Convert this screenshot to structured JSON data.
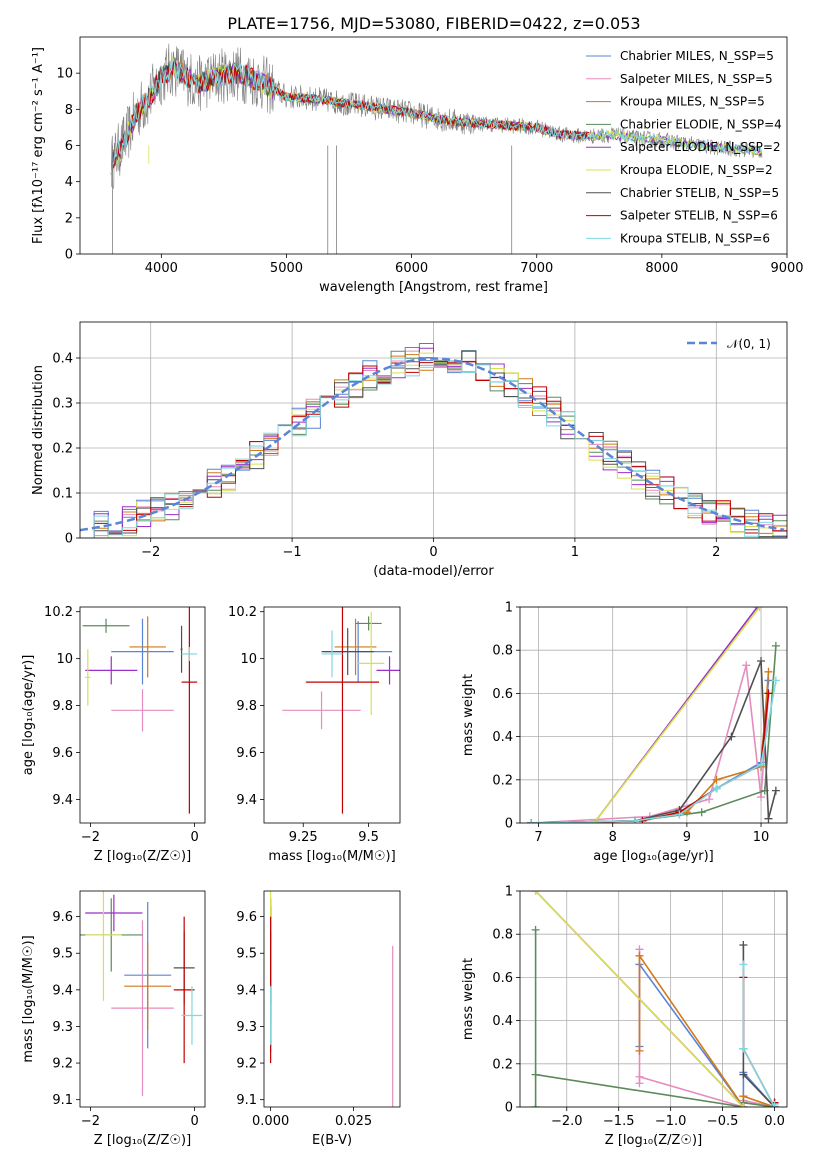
{
  "figure_title": "PLATE=1756, MJD=53080, FIBERID=0422, z=0.053",
  "model_colors": [
    "#5a84d6",
    "#e58cbe",
    "#d07a1b",
    "#5b8a5b",
    "#9b30c8",
    "#d8e050",
    "#505050",
    "#c00000",
    "#80d8e0"
  ],
  "chart_data": [
    {
      "type": "line",
      "panel": "spectrum",
      "xlabel": "wavelength [Angstrom, rest frame]",
      "ylabel": "Flux [fλ10⁻¹⁷ erg cm⁻² s⁻¹ A⁻¹]",
      "xlim": [
        3350,
        9000
      ],
      "ylim": [
        0,
        12
      ],
      "xticks": [
        4000,
        5000,
        6000,
        7000,
        8000,
        9000
      ],
      "yticks": [
        0,
        2,
        4,
        6,
        8,
        10
      ],
      "grid": false,
      "legend_position": "top-right",
      "legend": [
        "Chabrier MILES, N_SSP=5",
        "Salpeter MILES, N_SSP=5",
        "Kroupa MILES, N_SSP=5",
        "Chabrier ELODIE, N_SSP=4",
        "Salpeter ELODIE, N_SSP=2",
        "Kroupa ELODIE, N_SSP=2",
        "Chabrier STELIB, N_SSP=5",
        "Salpeter STELIB, N_SSP=6",
        "Kroupa STELIB, N_SSP=6"
      ],
      "data_envelope": {
        "wavelength": [
          3600,
          3650,
          3700,
          3750,
          3800,
          3850,
          3900,
          3950,
          4000,
          4100,
          4200,
          4300,
          4400,
          4500,
          4600,
          4700,
          4800,
          4900,
          5000,
          5200,
          5400,
          5600,
          5800,
          6000,
          6200,
          6400,
          6600,
          6800,
          7000,
          7200,
          7400,
          7600,
          7800,
          8000,
          8200,
          8400,
          8600,
          8800
        ],
        "flux": [
          5.0,
          5.6,
          6.2,
          6.9,
          7.8,
          8.2,
          8.6,
          9.2,
          9.8,
          10.3,
          9.8,
          9.4,
          9.7,
          9.9,
          10.0,
          9.8,
          9.5,
          9.1,
          8.7,
          8.6,
          8.4,
          8.2,
          8.0,
          7.8,
          7.5,
          7.3,
          7.2,
          7.1,
          7.0,
          6.6,
          6.5,
          6.6,
          6.4,
          6.3,
          6.1,
          5.9,
          5.8,
          5.7
        ]
      }
    },
    {
      "type": "line",
      "panel": "residuals",
      "xlabel": "(data-model)/error",
      "ylabel": "Normed distribution",
      "xlim": [
        -2.5,
        2.5
      ],
      "ylim": [
        0,
        0.48
      ],
      "xticks": [
        -2,
        -1,
        0,
        1,
        2
      ],
      "yticks": [
        0.0,
        0.1,
        0.2,
        0.3,
        0.4
      ],
      "grid": true,
      "legend_position": "top-right",
      "legend": [
        "𝒩(0, 1)"
      ],
      "hist_bin_width": 0.1
    },
    {
      "type": "scatter",
      "panel": "age-vs-metallicity",
      "xlabel": "Z [log₁₀(Z/Z☉)]",
      "ylabel": "age  [log₁₀(age/yr)]",
      "xlim": [
        -2.2,
        0.2
      ],
      "ylim": [
        9.3,
        10.22
      ],
      "xticks": [
        -2,
        0
      ],
      "yticks": [
        9.4,
        9.6,
        9.8,
        10.0,
        10.2
      ],
      "grid": false,
      "points": [
        {
          "x": -1.0,
          "y": 10.03,
          "xerr": 0.6,
          "yerr": 0.14,
          "color": 0
        },
        {
          "x": -1.0,
          "y": 9.78,
          "xerr": 0.6,
          "yerr": 0.09,
          "color": 1
        },
        {
          "x": -0.9,
          "y": 10.05,
          "xerr": 0.35,
          "yerr": 0.13,
          "color": 2
        },
        {
          "x": -1.7,
          "y": 10.14,
          "xerr": 0.45,
          "yerr": 0.03,
          "color": 3
        },
        {
          "x": -1.6,
          "y": 9.95,
          "xerr": 0.5,
          "yerr": 0.06,
          "color": 4
        },
        {
          "x": -2.05,
          "y": 9.92,
          "xerr": 0.05,
          "yerr": 0.12,
          "color": 5
        },
        {
          "x": -0.25,
          "y": 10.04,
          "xerr": 0.02,
          "yerr": 0.1,
          "color": 6
        },
        {
          "x": -0.1,
          "y": 9.9,
          "xerr": 0.15,
          "yerr": 0.56,
          "color": 7
        },
        {
          "x": -0.1,
          "y": 10.02,
          "xerr": 0.15,
          "yerr": 0.03,
          "color": 8
        }
      ]
    },
    {
      "type": "scatter",
      "panel": "age-vs-mass",
      "xlabel": "mass [log₁₀(M/M☉)]",
      "ylabel": "",
      "xlim": [
        9.1,
        9.62
      ],
      "ylim": [
        9.3,
        10.22
      ],
      "xticks": [
        9.25,
        9.5
      ],
      "yticks": [
        9.4,
        9.6,
        9.8,
        10.0,
        10.2
      ],
      "grid": false,
      "points": [
        {
          "x": 9.46,
          "y": 10.03,
          "xerr": 0.13,
          "yerr": 0.13,
          "color": 0
        },
        {
          "x": 9.32,
          "y": 9.78,
          "xerr": 0.15,
          "yerr": 0.08,
          "color": 1
        },
        {
          "x": 9.45,
          "y": 10.05,
          "xerr": 0.08,
          "yerr": 0.12,
          "color": 2
        },
        {
          "x": 9.5,
          "y": 10.15,
          "xerr": 0.05,
          "yerr": 0.03,
          "color": 3
        },
        {
          "x": 9.58,
          "y": 9.95,
          "xerr": 0.05,
          "yerr": 0.06,
          "color": 4
        },
        {
          "x": 9.51,
          "y": 9.98,
          "xerr": 0.05,
          "yerr": 0.22,
          "color": 5
        },
        {
          "x": 9.42,
          "y": 10.03,
          "xerr": 0.1,
          "yerr": 0.1,
          "color": 6
        },
        {
          "x": 9.4,
          "y": 9.9,
          "xerr": 0.14,
          "yerr": 0.56,
          "color": 7
        },
        {
          "x": 9.36,
          "y": 10.02,
          "xerr": 0.04,
          "yerr": 0.1,
          "color": 8
        }
      ]
    },
    {
      "type": "line",
      "panel": "mass-weight-vs-age",
      "xlabel": "age  [log₁₀(age/yr)]",
      "ylabel": "mass weight",
      "xlim": [
        6.75,
        10.35
      ],
      "ylim": [
        0,
        1
      ],
      "xticks": [
        7,
        8,
        9,
        10
      ],
      "yticks": [
        0.0,
        0.2,
        0.4,
        0.6,
        0.8,
        1.0
      ],
      "grid": true,
      "series": [
        {
          "color": 0,
          "x": [
            6.9,
            8.3,
            8.9,
            9.4,
            10.0,
            10.1
          ],
          "y": [
            0.0,
            0.01,
            0.04,
            0.16,
            0.28,
            0.66
          ]
        },
        {
          "color": 1,
          "x": [
            6.9,
            8.5,
            9.3,
            9.8,
            10.0,
            10.1
          ],
          "y": [
            0.0,
            0.03,
            0.11,
            0.73,
            0.12,
            0.6
          ]
        },
        {
          "color": 2,
          "x": [
            6.9,
            8.3,
            9.0,
            9.4,
            10.0,
            10.1
          ],
          "y": [
            0.0,
            0.01,
            0.05,
            0.2,
            0.26,
            0.7
          ]
        },
        {
          "color": 3,
          "x": [
            6.9,
            8.3,
            9.2,
            10.05,
            10.2
          ],
          "y": [
            0.0,
            0.01,
            0.05,
            0.15,
            0.82
          ]
        },
        {
          "color": 4,
          "x": [
            7.75,
            9.95
          ],
          "y": [
            0.0,
            1.0
          ]
        },
        {
          "color": 5,
          "x": [
            7.75,
            9.98
          ],
          "y": [
            0.0,
            1.0
          ]
        },
        {
          "color": 6,
          "x": [
            6.9,
            8.3,
            8.9,
            9.6,
            10.0,
            10.1,
            10.2
          ],
          "y": [
            0.0,
            0.01,
            0.06,
            0.4,
            0.75,
            0.02,
            0.15
          ]
        },
        {
          "color": 7,
          "x": [
            6.9,
            8.4,
            8.9,
            9.4,
            10.0,
            10.1
          ],
          "y": [
            0.0,
            0.01,
            0.05,
            0.16,
            0.27,
            0.6
          ]
        },
        {
          "color": 8,
          "x": [
            6.9,
            8.3,
            8.9,
            9.4,
            10.0,
            10.2
          ],
          "y": [
            0.0,
            0.01,
            0.04,
            0.16,
            0.27,
            0.66
          ]
        }
      ]
    },
    {
      "type": "scatter",
      "panel": "mass-vs-metallicity",
      "xlabel": "Z [log₁₀(Z/Z☉)]",
      "ylabel": "mass [log₁₀(M/M☉)]",
      "xlim": [
        -2.2,
        0.2
      ],
      "ylim": [
        9.08,
        9.67
      ],
      "xticks": [
        -2,
        0
      ],
      "yticks": [
        9.1,
        9.2,
        9.3,
        9.4,
        9.5,
        9.6
      ],
      "grid": false,
      "points": [
        {
          "x": -0.9,
          "y": 9.44,
          "xerr": 0.45,
          "yerr": 0.2,
          "color": 0
        },
        {
          "x": -1.0,
          "y": 9.35,
          "xerr": 0.6,
          "yerr": 0.24,
          "color": 1
        },
        {
          "x": -0.9,
          "y": 9.41,
          "xerr": 0.45,
          "yerr": 0.12,
          "color": 2
        },
        {
          "x": -1.6,
          "y": 9.55,
          "xerr": 0.6,
          "yerr": 0.1,
          "color": 3
        },
        {
          "x": -1.55,
          "y": 9.61,
          "xerr": 0.55,
          "yerr": 0.05,
          "color": 4
        },
        {
          "x": -1.75,
          "y": 9.55,
          "xerr": 0.35,
          "yerr": 0.18,
          "color": 5
        },
        {
          "x": -0.2,
          "y": 9.46,
          "xerr": 0.2,
          "yerr": 0.1,
          "color": 6
        },
        {
          "x": -0.2,
          "y": 9.4,
          "xerr": 0.2,
          "yerr": 0.2,
          "color": 7
        },
        {
          "x": -0.05,
          "y": 9.33,
          "xerr": 0.2,
          "yerr": 0.08,
          "color": 8
        }
      ]
    },
    {
      "type": "scatter",
      "panel": "mass-vs-ebv",
      "xlabel": "E(B-V)",
      "ylabel": "",
      "xlim": [
        -0.002,
        0.039
      ],
      "ylim": [
        9.08,
        9.67
      ],
      "xticks": [
        0.0,
        0.025
      ],
      "xticklabels": [
        "0.000",
        "0.025"
      ],
      "yticks": [
        9.1,
        9.2,
        9.3,
        9.4,
        9.5,
        9.6
      ],
      "grid": false,
      "points": [
        {
          "x": 0.0,
          "y": 9.43,
          "xerr": 0.0,
          "yerr": 0.2,
          "color": 0
        },
        {
          "x": 0.0368,
          "y": 9.3,
          "xerr": 0.0,
          "yerr": 0.22,
          "color": 1
        },
        {
          "x": 0.0,
          "y": 9.41,
          "xerr": 0.0,
          "yerr": 0.1,
          "color": 2
        },
        {
          "x": 0.0,
          "y": 9.55,
          "xerr": 0.0,
          "yerr": 0.08,
          "color": 3
        },
        {
          "x": 0.0,
          "y": 9.59,
          "xerr": 0.0,
          "yerr": 0.06,
          "color": 4
        },
        {
          "x": 0.0,
          "y": 9.54,
          "xerr": 0.0,
          "yerr": 0.16,
          "color": 5
        },
        {
          "x": 0.0,
          "y": 9.46,
          "xerr": 0.0,
          "yerr": 0.1,
          "color": 6
        },
        {
          "x": 0.0,
          "y": 9.4,
          "xerr": 0.0,
          "yerr": 0.2,
          "color": 7
        },
        {
          "x": 0.0,
          "y": 9.33,
          "xerr": 0.0,
          "yerr": 0.08,
          "color": 8
        }
      ]
    },
    {
      "type": "line",
      "panel": "mass-weight-vs-metallicity",
      "xlabel": "Z [log₁₀(Z/Z☉)]",
      "ylabel": "mass weight",
      "xlim": [
        -2.45,
        0.12
      ],
      "ylim": [
        0,
        1
      ],
      "xticks": [
        -2.0,
        -1.5,
        -1.0,
        -0.5,
        0.0
      ],
      "xticklabels": [
        "−2.0",
        "−1.5",
        "−1.0",
        "−0.5",
        "0.0"
      ],
      "yticks": [
        0.0,
        0.2,
        0.4,
        0.6,
        0.8,
        1.0
      ],
      "grid": true,
      "series": [
        {
          "color": 0,
          "x": [
            -1.3,
            -1.3,
            -0.3,
            -0.3,
            0.0
          ],
          "y": [
            0.28,
            0.66,
            0.0,
            0.16,
            0.0
          ]
        },
        {
          "color": 1,
          "x": [
            -1.3,
            -1.3,
            -1.3,
            -0.3,
            -0.3,
            0.0
          ],
          "y": [
            0.11,
            0.73,
            0.14,
            0.0,
            0.03,
            0.0
          ]
        },
        {
          "color": 2,
          "x": [
            -1.3,
            -1.3,
            -0.3,
            -0.3,
            0.0
          ],
          "y": [
            0.26,
            0.7,
            0.0,
            0.05,
            0.0
          ]
        },
        {
          "color": 3,
          "x": [
            -2.3,
            -2.3,
            -2.3,
            -0.3,
            -0.3,
            0.0
          ],
          "y": [
            0.82,
            0.0,
            0.15,
            0.0,
            0.02,
            0.0
          ]
        },
        {
          "color": 4,
          "x": [
            -2.3,
            -0.3
          ],
          "y": [
            1.0,
            0.0
          ]
        },
        {
          "color": 5,
          "x": [
            -2.3,
            -0.3
          ],
          "y": [
            1.0,
            0.0
          ]
        },
        {
          "color": 6,
          "x": [
            -0.3,
            -0.3,
            0.0,
            0.0
          ],
          "y": [
            0.75,
            0.15,
            0.0,
            0.02
          ]
        },
        {
          "color": 7,
          "x": [
            -0.3,
            -0.3,
            0.0,
            0.0
          ],
          "y": [
            0.6,
            0.27,
            0.0,
            0.02
          ]
        },
        {
          "color": 8,
          "x": [
            -0.3,
            -0.3,
            0.0,
            0.0
          ],
          "y": [
            0.66,
            0.27,
            0.0,
            0.01
          ]
        }
      ]
    }
  ]
}
